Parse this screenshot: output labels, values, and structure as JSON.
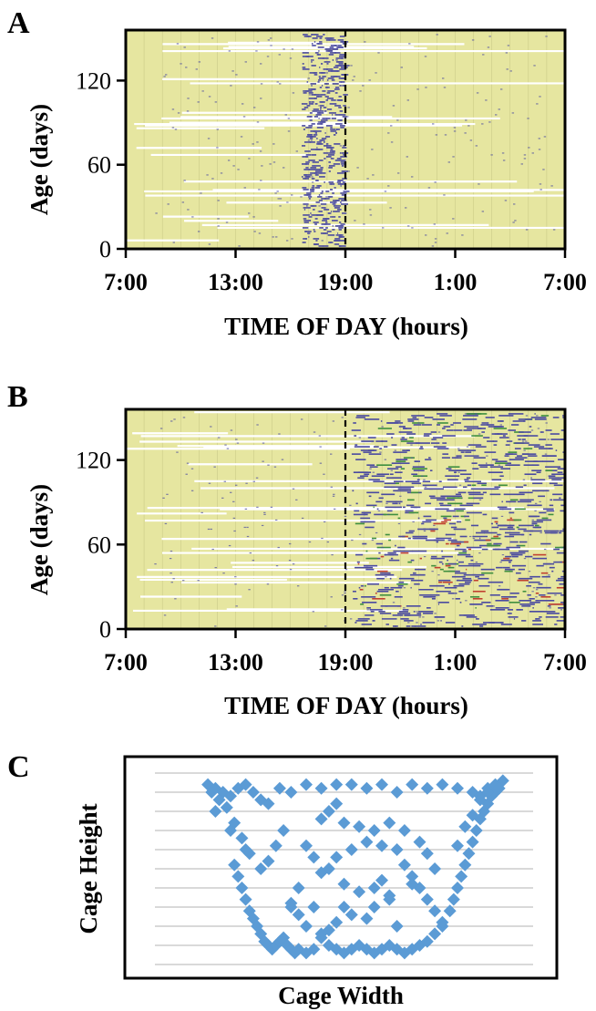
{
  "chart_data": [
    {
      "panel": "A",
      "type": "heatmap",
      "ylabel": "Age (days)",
      "xlabel": "TIME OF DAY (hours)",
      "yticks": [
        "0",
        "60",
        "120"
      ],
      "ytick_values": [
        0,
        60,
        120
      ],
      "xticks": [
        "7:00",
        "13:00",
        "19:00",
        "1:00",
        "7:00"
      ],
      "xtick_values": [
        0,
        6,
        12,
        18,
        24
      ],
      "ylim": [
        0,
        156
      ],
      "xlim": [
        0,
        24
      ],
      "lights_off_marker": 12,
      "activity_band": {
        "start": 9.6,
        "end": 11.9
      },
      "colors": {
        "background": "#e6e6a0",
        "grid": "#b8b878",
        "activity": "#4a4aa0",
        "gap": "#ffffff"
      }
    },
    {
      "panel": "B",
      "type": "heatmap",
      "ylabel": "Age (days)",
      "xlabel": "TIME OF DAY (hours)",
      "yticks": [
        "0",
        "60",
        "120"
      ],
      "ytick_values": [
        0,
        60,
        120
      ],
      "xticks": [
        "7:00",
        "13:00",
        "19:00",
        "1:00",
        "7:00"
      ],
      "xtick_values": [
        0,
        6,
        12,
        18,
        24
      ],
      "ylim": [
        0,
        156
      ],
      "xlim": [
        0,
        24
      ],
      "lights_off_marker": 12,
      "activity_band": {
        "start": 12.3,
        "end": 24
      },
      "colors": {
        "background": "#e6e6a0",
        "grid": "#b8b878",
        "activity": "#4a4aa0",
        "green": "#3f8f3f",
        "red": "#c04030",
        "gap": "#ffffff"
      }
    },
    {
      "panel": "C",
      "type": "scatter",
      "xlabel": "Cage Width",
      "ylabel": "Cage Height",
      "xlim": [
        0,
        100
      ],
      "ylim": [
        0,
        100
      ],
      "grid": true,
      "marker": "diamond",
      "color": "#5b9bd5",
      "series": [
        {
          "x": [
            14,
            16,
            18,
            20,
            22,
            24,
            26,
            28,
            30,
            33,
            36,
            40,
            44,
            48,
            52,
            56,
            60,
            64,
            68,
            72,
            76,
            80,
            84,
            86,
            88,
            90,
            92,
            15,
            17,
            19,
            21,
            23,
            25,
            16,
            20,
            24,
            28,
            21,
            22,
            23,
            24,
            25,
            26,
            27,
            28,
            29,
            30,
            31,
            32,
            33,
            34,
            35,
            36,
            37,
            38,
            40,
            42,
            44,
            46,
            48,
            50,
            52,
            54,
            56,
            58,
            60,
            62,
            64,
            66,
            68,
            70,
            72,
            74,
            76,
            78,
            79,
            80,
            81,
            82,
            83,
            84,
            85,
            86,
            87,
            88,
            89,
            90,
            91,
            80,
            82,
            84,
            86,
            88,
            50,
            54,
            58,
            62,
            56,
            60,
            52,
            48,
            46,
            50,
            54,
            58,
            62,
            40,
            42,
            44,
            38,
            36,
            64,
            66,
            68,
            70,
            72,
            74,
            76,
            60,
            62,
            58,
            34,
            32,
            30,
            44,
            46,
            48,
            42,
            66,
            70,
            72,
            74,
            68,
            64,
            56,
            52,
            50,
            48,
            46,
            44,
            40,
            38,
            36
          ],
          "y": [
            94,
            92,
            90,
            88,
            92,
            94,
            90,
            86,
            84,
            92,
            90,
            94,
            92,
            94,
            94,
            92,
            94,
            90,
            94,
            92,
            94,
            92,
            90,
            88,
            92,
            94,
            96,
            90,
            86,
            82,
            74,
            66,
            58,
            80,
            70,
            60,
            50,
            52,
            46,
            40,
            34,
            28,
            24,
            20,
            16,
            12,
            10,
            8,
            10,
            12,
            14,
            10,
            8,
            6,
            8,
            6,
            8,
            14,
            10,
            8,
            6,
            8,
            10,
            8,
            6,
            8,
            10,
            8,
            6,
            8,
            10,
            12,
            16,
            20,
            28,
            34,
            40,
            46,
            52,
            58,
            64,
            70,
            76,
            80,
            84,
            88,
            90,
            92,
            62,
            72,
            78,
            86,
            90,
            74,
            72,
            70,
            74,
            64,
            62,
            60,
            56,
            50,
            42,
            38,
            40,
            34,
            62,
            56,
            48,
            40,
            30,
            60,
            52,
            46,
            40,
            34,
            28,
            22,
            44,
            36,
            30,
            70,
            62,
            54,
            76,
            80,
            84,
            30,
            70,
            64,
            58,
            50,
            42,
            20,
            24,
            26,
            30,
            22,
            18,
            16,
            20,
            26,
            32
          ]
        }
      ]
    }
  ]
}
